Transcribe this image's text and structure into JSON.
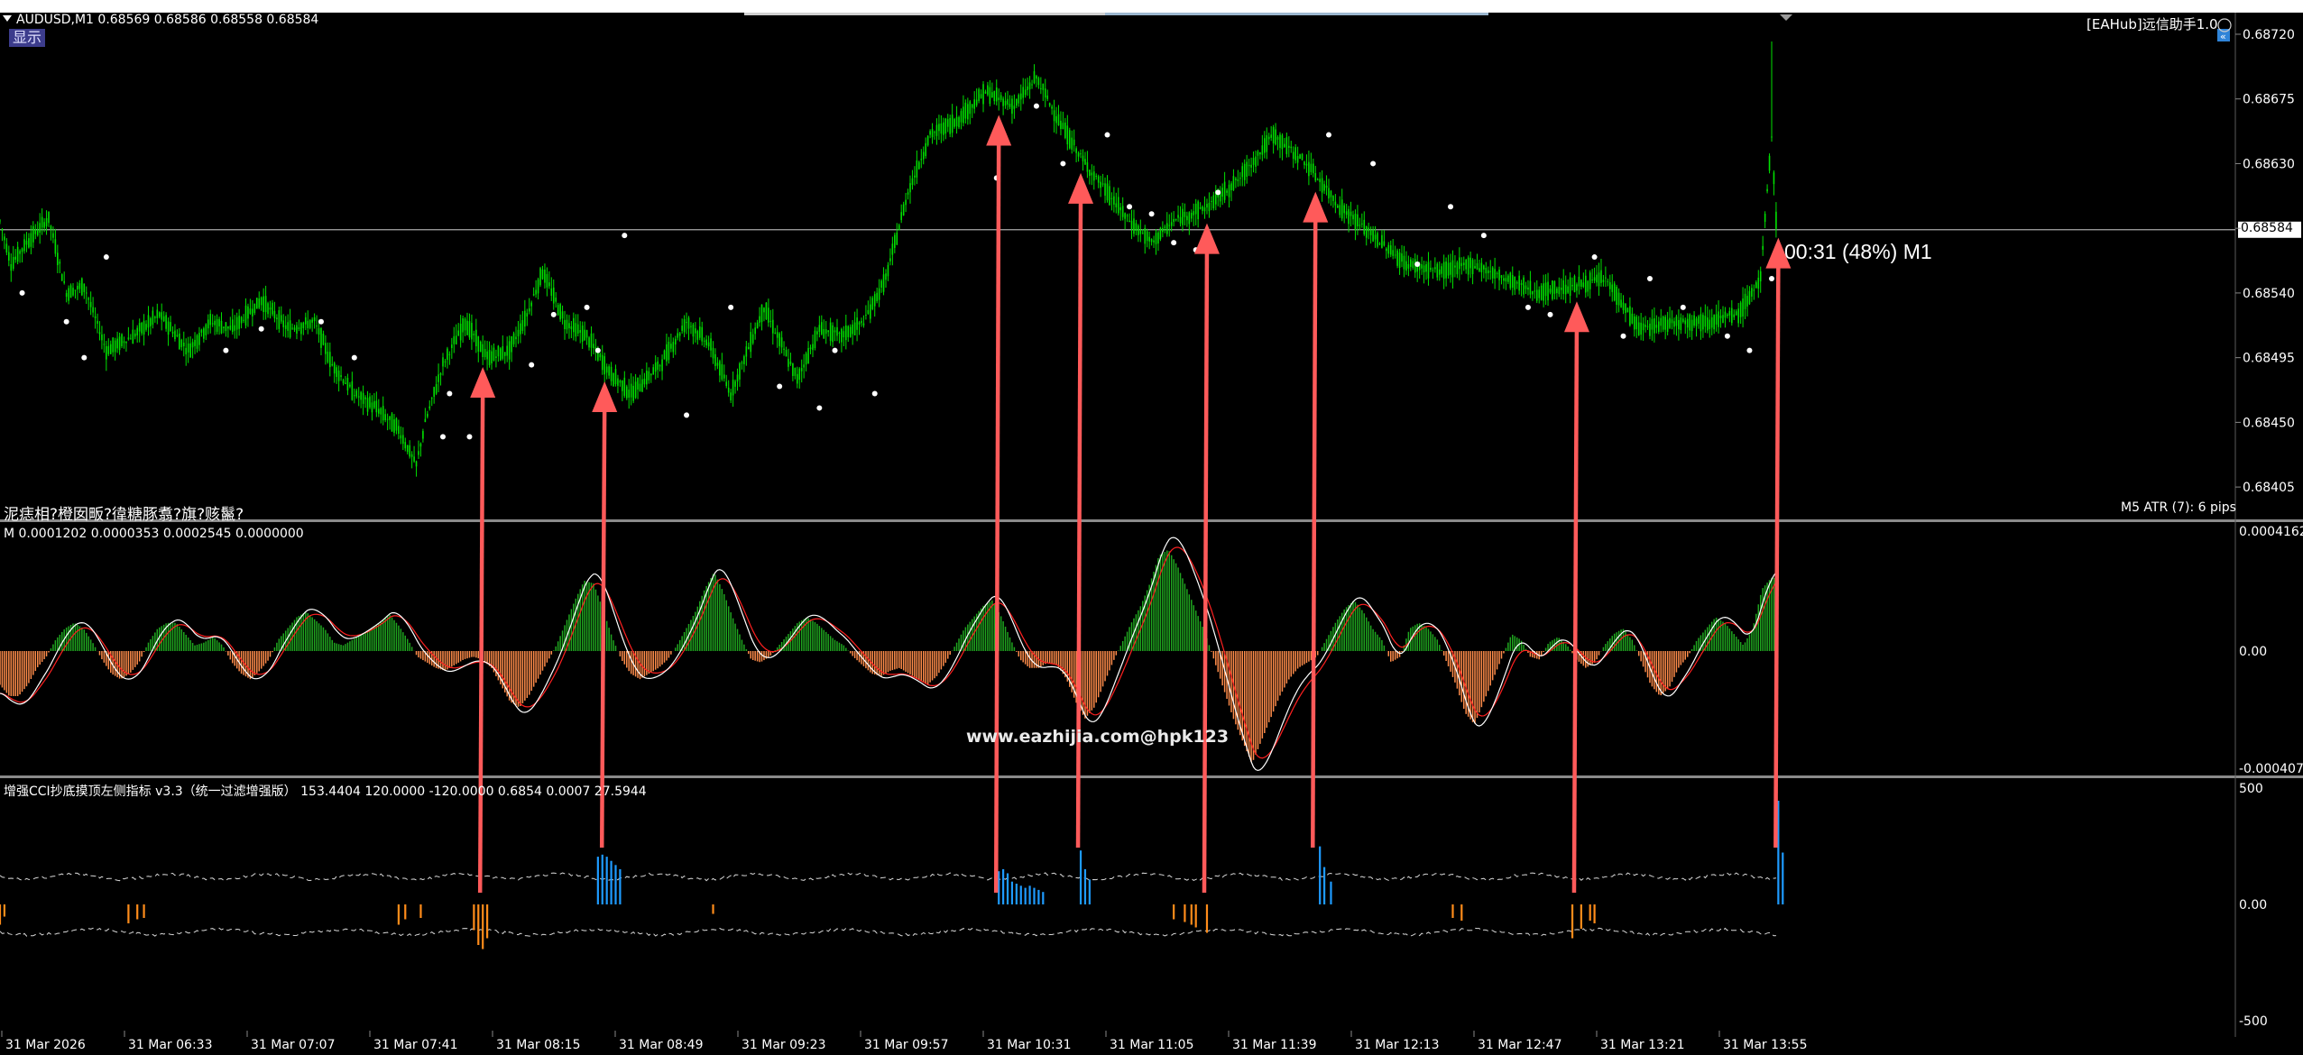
{
  "header": {
    "symbol_line": "AUDUSD,M1  0.68569 0.68586 0.68558 0.68584",
    "badge": "显示",
    "ea_label": "[EAHub]远信助手1.0",
    "garbled_label": "泥痣相?橙囡畈?徫糖豚翥?旗?赅鬣?",
    "atr_label": "M5 ATR (7): 6 pips",
    "timer_label": "00:31 (48%) M1",
    "current_price_tag": "0.68584"
  },
  "colors": {
    "background": "#000000",
    "candle": "#00e000",
    "fractal": "#ffffff",
    "hist_positive": "#1fa51f",
    "hist_negative": "#ff8c4a",
    "signal_red": "#ff2020",
    "signal_white": "#ffffff",
    "arrow": "#ff5a5a",
    "cci_buy": "#1e9bff",
    "cci_sell": "#ff8c1a",
    "cci_band": "#d8d8d8",
    "separator": "#8a8a8a"
  },
  "macd_panel": {
    "label": "M 0.0001202 0.0000353 0.0002545 0.0000000",
    "watermark": "www.eazhijia.com@hpk123",
    "ticks": [
      "0.0004162",
      "0.00",
      "-0.0004075"
    ]
  },
  "cci_panel": {
    "label": "增强CCI抄底摸顶左侧指标 v3.3（统一过滤增强版） 153.4404 120.0000 -120.0000 0.6854 0.0007 27.5944",
    "ticks": [
      "500",
      "0.00",
      "-500"
    ]
  },
  "chart_data": {
    "type": "line",
    "title": "AUDUSD,M1",
    "x_ticks": [
      "31 Mar 2026",
      "31 Mar 06:33",
      "31 Mar 07:07",
      "31 Mar 07:41",
      "31 Mar 08:15",
      "31 Mar 08:49",
      "31 Mar 09:23",
      "31 Mar 09:57",
      "31 Mar 10:31",
      "31 Mar 11:05",
      "31 Mar 11:39",
      "31 Mar 12:13",
      "31 Mar 12:47",
      "31 Mar 13:21",
      "31 Mar 13:55"
    ],
    "y_ticks": [
      "0.68720",
      "0.68675",
      "0.68630",
      "0.68585",
      "0.68540",
      "0.68495",
      "0.68450",
      "0.68405"
    ],
    "ylim": [
      0.68385,
      0.68725
    ],
    "current_price": 0.68584,
    "price_path": [
      [
        0,
        0.6859
      ],
      [
        5,
        0.6856
      ],
      [
        12,
        0.68575
      ],
      [
        22,
        0.68592
      ],
      [
        30,
        0.6854
      ],
      [
        38,
        0.68545
      ],
      [
        48,
        0.685
      ],
      [
        60,
        0.6851
      ],
      [
        72,
        0.68525
      ],
      [
        85,
        0.685
      ],
      [
        95,
        0.6852
      ],
      [
        105,
        0.68515
      ],
      [
        118,
        0.68535
      ],
      [
        130,
        0.68515
      ],
      [
        142,
        0.6852
      ],
      [
        150,
        0.6849
      ],
      [
        160,
        0.6847
      ],
      [
        170,
        0.6846
      ],
      [
        180,
        0.68445
      ],
      [
        188,
        0.6842
      ],
      [
        192,
        0.6845
      ],
      [
        200,
        0.6849
      ],
      [
        210,
        0.6852
      ],
      [
        220,
        0.68495
      ],
      [
        230,
        0.685
      ],
      [
        238,
        0.68525
      ],
      [
        245,
        0.68555
      ],
      [
        255,
        0.6852
      ],
      [
        265,
        0.6851
      ],
      [
        275,
        0.68485
      ],
      [
        285,
        0.6847
      ],
      [
        298,
        0.6849
      ],
      [
        310,
        0.6852
      ],
      [
        320,
        0.68505
      ],
      [
        330,
        0.6847
      ],
      [
        345,
        0.6853
      ],
      [
        360,
        0.6848
      ],
      [
        370,
        0.68515
      ],
      [
        380,
        0.6851
      ],
      [
        390,
        0.6852
      ],
      [
        400,
        0.6855
      ],
      [
        405,
        0.6858
      ],
      [
        410,
        0.6861
      ],
      [
        420,
        0.6865
      ],
      [
        432,
        0.6866
      ],
      [
        445,
        0.6868
      ],
      [
        458,
        0.6867
      ],
      [
        468,
        0.6869
      ],
      [
        478,
        0.6866
      ],
      [
        490,
        0.6863
      ],
      [
        500,
        0.6861
      ],
      [
        510,
        0.6859
      ],
      [
        520,
        0.68575
      ],
      [
        530,
        0.6859
      ],
      [
        545,
        0.686
      ],
      [
        560,
        0.6862
      ],
      [
        575,
        0.6865
      ],
      [
        590,
        0.6863
      ],
      [
        605,
        0.686
      ],
      [
        620,
        0.6858
      ],
      [
        635,
        0.6856
      ],
      [
        650,
        0.68555
      ],
      [
        665,
        0.6856
      ],
      [
        680,
        0.6855
      ],
      [
        695,
        0.6854
      ],
      [
        710,
        0.68545
      ],
      [
        725,
        0.6855
      ],
      [
        740,
        0.68515
      ],
      [
        755,
        0.6852
      ],
      [
        770,
        0.6852
      ],
      [
        785,
        0.68525
      ],
      [
        795,
        0.6855
      ],
      [
        800,
        0.6865
      ],
      [
        802,
        0.6859
      ]
    ],
    "fractals": [
      [
        10,
        0.6854
      ],
      [
        30,
        0.6852
      ],
      [
        38,
        0.68495
      ],
      [
        48,
        0.68565
      ],
      [
        102,
        0.685
      ],
      [
        118,
        0.68515
      ],
      [
        145,
        0.6852
      ],
      [
        160,
        0.68495
      ],
      [
        200,
        0.6844
      ],
      [
        203,
        0.6847
      ],
      [
        212,
        0.6844
      ],
      [
        218,
        0.6847
      ],
      [
        240,
        0.6849
      ],
      [
        250,
        0.68525
      ],
      [
        265,
        0.6853
      ],
      [
        270,
        0.685
      ],
      [
        282,
        0.6858
      ],
      [
        310,
        0.68455
      ],
      [
        330,
        0.6853
      ],
      [
        352,
        0.68475
      ],
      [
        370,
        0.6846
      ],
      [
        377,
        0.685
      ],
      [
        395,
        0.6847
      ],
      [
        450,
        0.6862
      ],
      [
        468,
        0.6867
      ],
      [
        480,
        0.6863
      ],
      [
        500,
        0.6865
      ],
      [
        510,
        0.686
      ],
      [
        520,
        0.68595
      ],
      [
        530,
        0.68575
      ],
      [
        540,
        0.6857
      ],
      [
        550,
        0.6861
      ],
      [
        600,
        0.6865
      ],
      [
        620,
        0.6863
      ],
      [
        640,
        0.6856
      ],
      [
        655,
        0.686
      ],
      [
        670,
        0.6858
      ],
      [
        690,
        0.6853
      ],
      [
        700,
        0.68525
      ],
      [
        720,
        0.68565
      ],
      [
        733,
        0.6851
      ],
      [
        745,
        0.6855
      ],
      [
        760,
        0.6853
      ],
      [
        780,
        0.6851
      ],
      [
        790,
        0.685
      ],
      [
        800,
        0.6855
      ]
    ],
    "arrow_signal_bars": [
      218,
      273,
      451,
      488,
      545,
      594,
      712,
      803
    ],
    "macd_hist": [
      -0.00012,
      -0.00016,
      -0.00016,
      -0.00012,
      -6e-05,
      -2e-05,
      4e-05,
      8e-05,
      0.0001,
      8e-05,
      3e-05,
      -3e-05,
      -8e-05,
      -0.0001,
      -8e-05,
      -4e-05,
      3e-05,
      8e-05,
      0.0001,
      0.0001,
      6e-05,
      2e-05,
      3e-05,
      5e-05,
      2e-05,
      -4e-05,
      -8e-05,
      -0.0001,
      -7e-05,
      -3e-05,
      4e-05,
      8e-05,
      0.00012,
      0.00014,
      0.00011,
      8e-05,
      3e-05,
      2e-05,
      4e-05,
      6e-05,
      8e-05,
      0.0001,
      0.00013,
      9e-05,
      4e-05,
      -2e-05,
      -4e-05,
      -6e-05,
      -7e-05,
      -5e-05,
      -3e-05,
      -2e-05,
      -3e-05,
      -6e-05,
      -0.00012,
      -0.00018,
      -0.0002,
      -0.00016,
      -0.0001,
      -4e-05,
      2e-05,
      0.0001,
      0.00018,
      0.00025,
      0.00024,
      0.00015,
      5e-05,
      -3e-05,
      -8e-05,
      -0.0001,
      -8e-05,
      -6e-05,
      -3e-05,
      2e-05,
      8e-05,
      0.00014,
      0.00022,
      0.00028,
      0.00021,
      0.00012,
      4e-05,
      -3e-05,
      -4e-05,
      -2e-05,
      2e-05,
      6e-05,
      0.0001,
      0.00012,
      0.0001,
      7e-05,
      4e-05,
      2e-05,
      -2e-05,
      -5e-05,
      -8e-05,
      -9e-05,
      -7e-05,
      -6e-05,
      -8e-05,
      -0.0001,
      -0.00012,
      -9e-05,
      -4e-05,
      2e-05,
      8e-05,
      0.00012,
      0.00016,
      0.00018,
      0.00012,
      4e-05,
      -3e-05,
      -6e-05,
      -6e-05,
      -4e-05,
      -5e-05,
      -0.0001,
      -0.00018,
      -0.00024,
      -0.0002,
      -0.00012,
      -4e-05,
      3e-05,
      0.0001,
      0.00016,
      0.00024,
      0.00034,
      0.00036,
      0.0003,
      0.00022,
      0.00014,
      6e-05,
      -4e-05,
      -0.00014,
      -0.00024,
      -0.00032,
      -0.0004,
      -0.00032,
      -0.00024,
      -0.00016,
      -0.0001,
      -6e-05,
      -4e-05,
      -2e-05,
      4e-05,
      0.0001,
      0.00015,
      0.00018,
      0.00014,
      8e-05,
      4e-05,
      -4e-05,
      -2e-05,
      8e-05,
      0.0001,
      8e-05,
      4e-05,
      -4e-05,
      -0.00012,
      -0.00022,
      -0.00026,
      -0.00018,
      -0.0001,
      -2e-05,
      6e-05,
      4e-05,
      -2e-05,
      -3e-05,
      3e-05,
      5e-05,
      2e-05,
      -3e-05,
      -6e-05,
      -4e-05,
      2e-05,
      6e-05,
      8e-05,
      4e-05,
      -4e-05,
      -0.00012,
      -0.00016,
      -0.00013,
      -6e-05,
      -2e-05,
      4e-05,
      8e-05,
      0.00012,
      0.0001,
      6e-05,
      2e-05,
      8e-05,
      0.00022,
      0.00026
    ],
    "cci_buy_bars": [
      [
        270,
        0.46
      ],
      [
        272,
        0.48
      ],
      [
        274,
        0.46
      ],
      [
        276,
        0.42
      ],
      [
        278,
        0.38
      ],
      [
        280,
        0.34
      ],
      [
        451,
        0.32
      ],
      [
        453,
        0.34
      ],
      [
        455,
        0.3
      ],
      [
        457,
        0.22
      ],
      [
        459,
        0.2
      ],
      [
        461,
        0.18
      ],
      [
        463,
        0.16
      ],
      [
        465,
        0.18
      ],
      [
        467,
        0.16
      ],
      [
        469,
        0.14
      ],
      [
        471,
        0.12
      ],
      [
        488,
        0.52
      ],
      [
        490,
        0.34
      ],
      [
        492,
        0.24
      ],
      [
        596,
        0.56
      ],
      [
        598,
        0.36
      ],
      [
        601,
        0.22
      ],
      [
        803,
        1.0
      ],
      [
        805,
        0.5
      ]
    ],
    "cci_sell_bars": [
      [
        0,
        0.3
      ],
      [
        2,
        0.18
      ],
      [
        58,
        0.28
      ],
      [
        62,
        0.22
      ],
      [
        65,
        0.2
      ],
      [
        180,
        0.3
      ],
      [
        183,
        0.22
      ],
      [
        190,
        0.2
      ],
      [
        214,
        0.38
      ],
      [
        216,
        0.6
      ],
      [
        218,
        0.66
      ],
      [
        220,
        0.5
      ],
      [
        322,
        0.14
      ],
      [
        530,
        0.22
      ],
      [
        535,
        0.26
      ],
      [
        538,
        0.3
      ],
      [
        540,
        0.34
      ],
      [
        545,
        0.42
      ],
      [
        656,
        0.2
      ],
      [
        660,
        0.24
      ],
      [
        710,
        0.5
      ],
      [
        714,
        0.36
      ],
      [
        718,
        0.24
      ],
      [
        720,
        0.28
      ]
    ]
  }
}
